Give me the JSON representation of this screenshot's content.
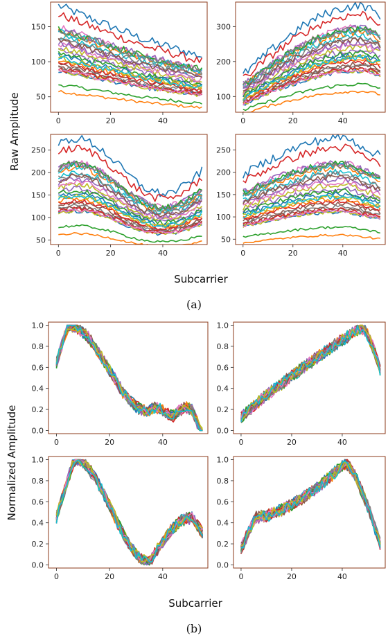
{
  "figure": {
    "caption_a": "(a)",
    "caption_b": "(b)",
    "ylabel_a": "Raw Amplitude",
    "xlabel_a": "Subcarrier",
    "ylabel_b": "Normalized Amplitude",
    "xlabel_b": "Subcarrier"
  },
  "palette": [
    "#1f77b4",
    "#ff7f0e",
    "#2ca02c",
    "#d62728",
    "#9467bd",
    "#8c564b",
    "#e377c2",
    "#7f7f7f",
    "#bcbd22",
    "#17becf"
  ],
  "chart_data": [
    {
      "type": "line",
      "xlim": [
        -3,
        57
      ],
      "ylim": [
        28,
        185
      ],
      "xticks": [
        0,
        20,
        40
      ],
      "yticks": [
        50,
        100,
        150
      ],
      "series_count": 30,
      "shape": "decay",
      "base_range": [
        55,
        180
      ]
    },
    {
      "type": "line",
      "xlim": [
        -3,
        57
      ],
      "ylim": [
        55,
        370
      ],
      "xticks": [
        0,
        20,
        40
      ],
      "yticks": [
        100,
        200,
        300
      ],
      "series_count": 30,
      "shape": "rise",
      "base_range": [
        110,
        360
      ]
    },
    {
      "type": "line",
      "xlim": [
        -3,
        57
      ],
      "ylim": [
        40,
        285
      ],
      "xticks": [
        0,
        20,
        40
      ],
      "yticks": [
        50,
        100,
        150,
        200,
        250
      ],
      "series_count": 30,
      "shape": "valley",
      "base_range": [
        60,
        275
      ]
    },
    {
      "type": "line",
      "xlim": [
        -3,
        57
      ],
      "ylim": [
        38,
        285
      ],
      "xticks": [
        0,
        20,
        40
      ],
      "yticks": [
        50,
        100,
        150,
        200,
        250
      ],
      "series_count": 30,
      "shape": "hump",
      "base_range": [
        55,
        278
      ]
    },
    {
      "type": "line",
      "xlim": [
        -3,
        57
      ],
      "ylim": [
        -0.03,
        1.03
      ],
      "xticks": [
        0,
        20,
        40
      ],
      "yticks": [
        0.0,
        0.2,
        0.4,
        0.6,
        0.8,
        1.0
      ],
      "ytick_labels": [
        "0.0",
        "0.2",
        "0.4",
        "0.6",
        "0.8",
        "1.0"
      ],
      "series_count": 40,
      "shape": "norm-decay"
    },
    {
      "type": "line",
      "xlim": [
        -3,
        57
      ],
      "ylim": [
        -0.03,
        1.03
      ],
      "xticks": [
        0,
        20,
        40
      ],
      "yticks": [
        0.0,
        0.2,
        0.4,
        0.6,
        0.8,
        1.0
      ],
      "ytick_labels": [
        "0.0",
        "0.2",
        "0.4",
        "0.6",
        "0.8",
        "1.0"
      ],
      "series_count": 40,
      "shape": "norm-rise"
    },
    {
      "type": "line",
      "xlim": [
        -3,
        57
      ],
      "ylim": [
        -0.03,
        1.03
      ],
      "xticks": [
        0,
        20,
        40
      ],
      "yticks": [
        0.0,
        0.2,
        0.4,
        0.6,
        0.8,
        1.0
      ],
      "ytick_labels": [
        "0.0",
        "0.2",
        "0.4",
        "0.6",
        "0.8",
        "1.0"
      ],
      "series_count": 40,
      "shape": "norm-valley"
    },
    {
      "type": "line",
      "xlim": [
        -3,
        57
      ],
      "ylim": [
        -0.03,
        1.03
      ],
      "xticks": [
        0,
        20,
        40
      ],
      "yticks": [
        0.0,
        0.2,
        0.4,
        0.6,
        0.8,
        1.0
      ],
      "ytick_labels": [
        "0.0",
        "0.2",
        "0.4",
        "0.6",
        "0.8",
        "1.0"
      ],
      "series_count": 40,
      "shape": "norm-hump"
    }
  ]
}
